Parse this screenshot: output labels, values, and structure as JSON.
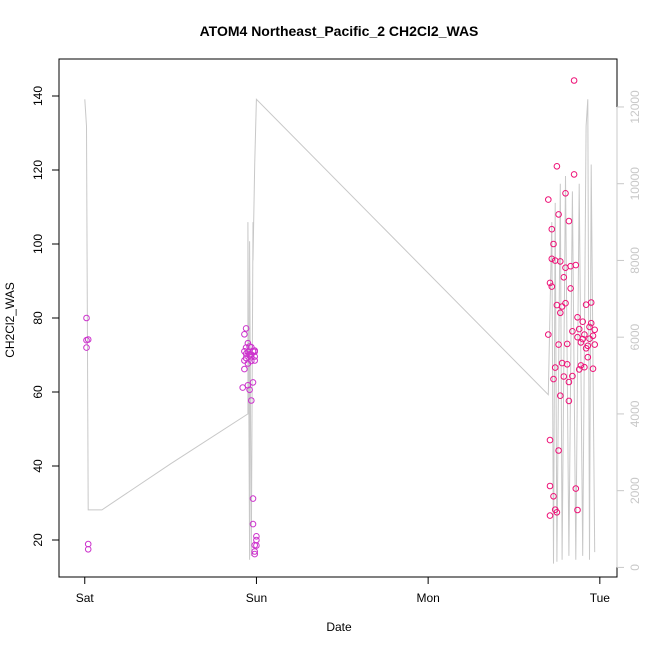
{
  "chart_data": {
    "type": "scatter",
    "title": "ATOM4 Northeast_Pacific_2 CH2Cl2_WAS",
    "xlabel": "Date",
    "ylabel": "CH2Cl2_WAS",
    "x_ticks": [
      "Sat",
      "Sun",
      "Mon",
      "Tue"
    ],
    "x_tick_days": [
      0,
      1,
      2,
      3
    ],
    "xlim_days": [
      -0.15,
      3.1
    ],
    "ylim": [
      10,
      150
    ],
    "y_ticks": [
      20,
      40,
      60,
      80,
      100,
      120,
      140
    ],
    "y2_ticks": [
      0,
      2000,
      4000,
      6000,
      8000,
      10000,
      12000
    ],
    "y2lim": [
      -250,
      13250
    ],
    "grid": false,
    "colors": {
      "points_purple": "#cc33cc",
      "points_pink": "#ee1177",
      "altitude_line": "#c8c8c8"
    },
    "series": [
      {
        "style": "points",
        "color": "#cc33cc",
        "x": [
          0.01,
          0.01,
          0.01,
          0.02,
          0.02,
          0.02,
          0.92,
          0.93,
          0.93,
          0.93,
          0.93,
          0.94,
          0.94,
          0.94,
          0.94,
          0.95,
          0.95,
          0.95,
          0.95,
          0.96,
          0.96,
          0.96,
          0.96,
          0.97,
          0.97,
          0.97,
          0.97,
          0.97,
          0.98,
          0.98,
          0.98,
          0.98,
          0.99,
          0.99,
          0.99,
          0.99,
          0.99,
          0.99,
          0.99,
          1.0,
          1.0,
          1.0
        ],
        "y": [
          80.0,
          72.0,
          74.0,
          74.2,
          18.9,
          17.5,
          61.2,
          75.6,
          68.5,
          66.2,
          71.0,
          70.3,
          77.2,
          72.0,
          69.2,
          67.7,
          73.2,
          61.8,
          70.9,
          72.3,
          70.2,
          69.8,
          60.6,
          57.7,
          68.4,
          70.1,
          72.1,
          69.4,
          71.0,
          62.6,
          31.2,
          24.3,
          16.9,
          68.5,
          71.2,
          69.6,
          70.9,
          18.6,
          16.2,
          21.0,
          20.0,
          18.5
        ]
      },
      {
        "style": "points",
        "color": "#ee1177",
        "x": [
          2.7,
          2.7,
          2.71,
          2.71,
          2.71,
          2.71,
          2.72,
          2.72,
          2.72,
          2.73,
          2.73,
          2.73,
          2.74,
          2.74,
          2.74,
          2.75,
          2.75,
          2.75,
          2.76,
          2.76,
          2.76,
          2.77,
          2.77,
          2.77,
          2.78,
          2.78,
          2.79,
          2.79,
          2.8,
          2.8,
          2.8,
          2.81,
          2.81,
          2.82,
          2.82,
          2.82,
          2.83,
          2.83,
          2.84,
          2.84,
          2.85,
          2.85,
          2.86,
          2.86,
          2.87,
          2.87,
          2.87,
          2.88,
          2.88,
          2.89,
          2.89,
          2.9,
          2.9,
          2.91,
          2.91,
          2.92,
          2.92,
          2.93,
          2.93,
          2.94,
          2.94,
          2.95,
          2.95,
          2.96,
          2.96,
          2.97,
          2.97
        ],
        "y": [
          112.0,
          75.5,
          89.5,
          47.0,
          34.6,
          26.6,
          104.0,
          96.0,
          88.5,
          100.0,
          63.5,
          31.8,
          95.5,
          66.6,
          28.2,
          83.5,
          27.5,
          121.0,
          108.0,
          44.2,
          72.8,
          81.4,
          59.0,
          95.3,
          83.1,
          67.8,
          91.0,
          64.2,
          113.7,
          93.6,
          84.0,
          67.5,
          73.0,
          62.7,
          57.6,
          106.2,
          94.0,
          88.0,
          76.4,
          64.3,
          144.2,
          118.8,
          94.3,
          33.9,
          80.2,
          74.8,
          28.1,
          77.0,
          66.1,
          73.4,
          67.2,
          74.3,
          79.0,
          75.5,
          66.7,
          83.6,
          71.8,
          72.5,
          69.4,
          74.4,
          77.6,
          78.6,
          84.2,
          75.2,
          66.3,
          76.8,
          72.8
        ]
      },
      {
        "style": "line",
        "color": "#c8c8c8",
        "axis": "right",
        "x": [
          0.0,
          0.01,
          0.02,
          0.05,
          0.1,
          0.5,
          0.95,
          0.95,
          0.96,
          0.96,
          0.97,
          0.98,
          0.98,
          0.99,
          1.0,
          2.7,
          2.72,
          2.73,
          2.74,
          2.75,
          2.77,
          2.78,
          2.8,
          2.82,
          2.84,
          2.86,
          2.88,
          2.9,
          2.92,
          2.93,
          2.94,
          2.95,
          2.97
        ],
        "y": [
          12200,
          11500,
          1500,
          1500,
          1500,
          2700,
          4000,
          9000,
          200,
          8500,
          300,
          9000,
          8000,
          10500,
          12200,
          4500,
          9000,
          100,
          9500,
          150,
          10000,
          200,
          10200,
          300,
          9800,
          200,
          10000,
          300,
          11500,
          12200,
          200,
          10500,
          400
        ]
      }
    ]
  }
}
